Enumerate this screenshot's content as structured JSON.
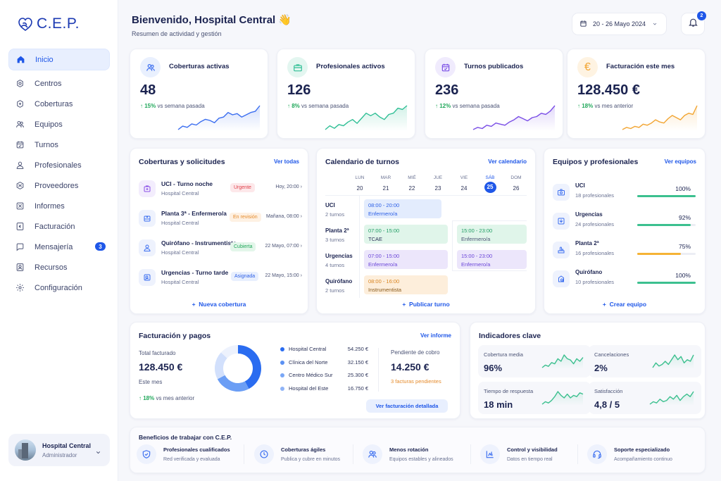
{
  "brand": {
    "name": "C.E.P."
  },
  "sidebar": {
    "items": [
      {
        "label": "Inicio",
        "icon": "home-icon",
        "active": true
      },
      {
        "label": "Centros",
        "icon": "building-icon"
      },
      {
        "label": "Coberturas",
        "icon": "coverage-icon"
      },
      {
        "label": "Equipos",
        "icon": "team-icon"
      },
      {
        "label": "Turnos",
        "icon": "calendar-icon"
      },
      {
        "label": "Profesionales",
        "icon": "user-icon"
      },
      {
        "label": "Proveedores",
        "icon": "box-icon"
      },
      {
        "label": "Informes",
        "icon": "report-icon"
      },
      {
        "label": "Facturación",
        "icon": "euro-icon"
      },
      {
        "label": "Mensajería",
        "icon": "chat-icon",
        "badge": "3"
      },
      {
        "label": "Recursos",
        "icon": "resource-icon"
      },
      {
        "label": "Configuración",
        "icon": "gear-icon"
      }
    ],
    "user": {
      "name": "Hospital Central",
      "role": "Administrador"
    }
  },
  "header": {
    "title": "Bienvenido, Hospital Central",
    "emoji": "👋",
    "subtitle": "Resumen de actividad y gestión",
    "date_range": "20 - 26 Mayo 2024",
    "notifications": "2"
  },
  "kpis": [
    {
      "label": "Coberturas activas",
      "value": "48",
      "delta": "15%",
      "delta_text": "vs semana pasada",
      "color": "#3b6ef0",
      "bg": "#e9f0fe",
      "spark": [
        2,
        5,
        4,
        7,
        6,
        9,
        11,
        10,
        8,
        12,
        13,
        17,
        15,
        16,
        13,
        15,
        17,
        18,
        23
      ]
    },
    {
      "label": "Profesionales activos",
      "value": "126",
      "delta": "8%",
      "delta_text": "vs semana pasada",
      "color": "#2fbf95",
      "bg": "#e3f6f0",
      "spark": [
        2,
        5,
        3,
        6,
        5,
        8,
        10,
        7,
        11,
        15,
        13,
        15,
        12,
        10,
        14,
        15,
        19,
        18,
        21
      ]
    },
    {
      "label": "Turnos publicados",
      "value": "236",
      "delta": "12%",
      "delta_text": "vs semana pasada",
      "color": "#7a4ee6",
      "bg": "#f0ebfd",
      "spark": [
        1,
        3,
        2,
        5,
        4,
        7,
        6,
        5,
        8,
        10,
        13,
        11,
        9,
        12,
        13,
        16,
        15,
        18,
        23
      ]
    },
    {
      "label": "Facturación este mes",
      "value": "128.450 €",
      "delta": "18%",
      "delta_text": "vs mes anterior",
      "color": "#f2a532",
      "bg": "#fef3e2",
      "spark": [
        1,
        3,
        2,
        4,
        3,
        6,
        5,
        7,
        10,
        8,
        7,
        11,
        14,
        12,
        10,
        14,
        16,
        15,
        23
      ]
    }
  ],
  "coberturas": {
    "title": "Coberturas y solicitudes",
    "link": "Ver todas",
    "action": "Nueva cobertura",
    "items": [
      {
        "title": "UCI - Turno noche",
        "center": "Hospital Central",
        "status": "Urgente",
        "status_color": "#e0424b",
        "status_bg": "#fde8ea",
        "time": "Hoy, 20:00",
        "icon": "medical-bag-icon",
        "icon_color": "#8a4fe6",
        "icon_bg": "#f3edfd"
      },
      {
        "title": "Planta 3ª - Enfermero/a",
        "center": "Hospital Central",
        "status": "En revisión",
        "status_color": "#e58a2a",
        "status_bg": "#fef1e3",
        "time": "Mañana, 08:00",
        "icon": "bed-icon",
        "icon_color": "#3b6ef0",
        "icon_bg": "#eef2fd"
      },
      {
        "title": "Quirófano - Instrumentista",
        "center": "Hospital Central",
        "status": "Cubierta",
        "status_color": "#21a85b",
        "status_bg": "#e3f6ea",
        "time": "22 Mayo, 07:00",
        "icon": "surgeon-icon",
        "icon_color": "#3b6ef0",
        "icon_bg": "#eef2fd"
      },
      {
        "title": "Urgencias - Turno tarde",
        "center": "Hospital Central",
        "status": "Asignada",
        "status_color": "#2c5fe6",
        "status_bg": "#e8effe",
        "time": "22 Mayo, 15:00",
        "icon": "emergency-icon",
        "icon_color": "#3b6ef0",
        "icon_bg": "#eef2fd"
      }
    ]
  },
  "calendario": {
    "title": "Calendario de turnos",
    "link": "Ver calendario",
    "action": "Publicar turno",
    "days": [
      {
        "name": "LUN",
        "num": "20"
      },
      {
        "name": "MAR",
        "num": "21"
      },
      {
        "name": "MIÉ",
        "num": "22"
      },
      {
        "name": "JUE",
        "num": "23"
      },
      {
        "name": "VIE",
        "num": "24"
      },
      {
        "name": "SÁB",
        "num": "25",
        "today": true
      },
      {
        "name": "DOM",
        "num": "26"
      }
    ],
    "rows": [
      {
        "name": "UCI",
        "count": "2 turnos"
      },
      {
        "name": "Planta 2ª",
        "count": "3 turnos"
      },
      {
        "name": "Urgencias",
        "count": "4 turnos"
      },
      {
        "name": "Quirófano",
        "count": "2 turnos"
      }
    ],
    "shifts": [
      {
        "time": "08:00 - 20:00",
        "role": "Enfermero/a",
        "color": "#2c5fe6",
        "bg": "#e3ecfd"
      },
      {
        "time": "07:00 - 15:00",
        "role": "TCAE",
        "color": "#1f9d63",
        "bg": "#e0f5ea"
      },
      {
        "time": "15:00 - 23:00",
        "role": "Enfermero/a",
        "color": "#1f9d63",
        "bg": "#e0f5ea"
      },
      {
        "time": "07:00 - 15:00",
        "role": "Enfermero/a",
        "color": "#6a45d8",
        "bg": "#ece6fb"
      },
      {
        "time": "15:00 - 23:00",
        "role": "Enfermero/a",
        "color": "#6a45d8",
        "bg": "#ece6fb"
      },
      {
        "time": "08:00 - 16:00",
        "role": "Instrumentista",
        "color": "#d98420",
        "bg": "#fdeedb"
      }
    ]
  },
  "equipos": {
    "title": "Equipos y profesionales",
    "link": "Ver equipos",
    "action": "Crear equipo",
    "items": [
      {
        "name": "UCI",
        "sub": "18 profesionales",
        "pct_label": "100%",
        "pct": 100,
        "color": "#3cc08f",
        "icon": "camera-icon"
      },
      {
        "name": "Urgencias",
        "sub": "24 profesionales",
        "pct_label": "92%",
        "pct": 92,
        "color": "#3cc08f",
        "icon": "inbox-icon"
      },
      {
        "name": "Planta 2ª",
        "sub": "16 profesionales",
        "pct_label": "75%",
        "pct": 75,
        "color": "#f5b335",
        "icon": "hand-icon"
      },
      {
        "name": "Quirófano",
        "sub": "10 profesionales",
        "pct_label": "100%",
        "pct": 100,
        "color": "#3cc08f",
        "icon": "surgery-icon"
      }
    ]
  },
  "facturacion": {
    "title": "Facturación y pagos",
    "link": "Ver informe",
    "total_label": "Total facturado",
    "total_value": "128.450 €",
    "period": "Este mes",
    "delta": "18%",
    "delta_text": "vs mes anterior",
    "pending_label": "Pendiente de cobro",
    "pending_value": "14.250 €",
    "pending_note": "3 facturas pendientes",
    "button": "Ver facturación detallada",
    "legend": [
      {
        "name": "Hospital Central",
        "value": "54.250 €",
        "amount": 54250,
        "color": "#2a6cf0"
      },
      {
        "name": "Clínica del Norte",
        "value": "32.150 €",
        "amount": 32150,
        "color": "#6b9ef5"
      },
      {
        "name": "Centro Médico Sur",
        "value": "25.300 €",
        "amount": 25300,
        "color": "#d2e0fc"
      },
      {
        "name": "Hospital del Este",
        "value": "16.750 €",
        "amount": 16750,
        "color": "#edf2fd"
      }
    ],
    "legend_dot_colors": [
      "#2a6cf0",
      "#5b91f3",
      "#7aa7f6",
      "#8fb4f7"
    ]
  },
  "indicadores": {
    "title": "Indicadores clave",
    "items": [
      {
        "label": "Cobertura media",
        "value": "96%",
        "spark": [
          2,
          4,
          3,
          6,
          5,
          9,
          7,
          12,
          9,
          8,
          5,
          9,
          7,
          10
        ]
      },
      {
        "label": "Cancelaciones",
        "value": "2%",
        "spark": [
          3,
          6,
          4,
          5,
          7,
          5,
          8,
          11,
          8,
          10,
          6,
          8,
          7,
          11
        ]
      },
      {
        "label": "Tiempo de respuesta",
        "value": "18 min",
        "spark": [
          2,
          4,
          3,
          5,
          8,
          12,
          9,
          7,
          10,
          7,
          9,
          8,
          11,
          10
        ]
      },
      {
        "label": "Satisfacción",
        "value": "4,8 / 5",
        "spark": [
          2,
          4,
          3,
          6,
          4,
          5,
          8,
          6,
          9,
          5,
          8,
          10,
          8,
          12
        ]
      }
    ]
  },
  "beneficios": {
    "title": "Beneficios de trabajar con C.E.P.",
    "items": [
      {
        "title": "Profesionales cualificados",
        "sub": "Red verificada y evaluada",
        "icon": "shield-check-icon"
      },
      {
        "title": "Coberturas ágiles",
        "sub": "Publica y cubre en minutos",
        "icon": "clock-icon"
      },
      {
        "title": "Menos rotación",
        "sub": "Equipos estables y alineados",
        "icon": "users-icon"
      },
      {
        "title": "Control y visibilidad",
        "sub": "Datos en tiempo real",
        "icon": "chart-icon"
      },
      {
        "title": "Soporte especializado",
        "sub": "Acompañamiento continuo",
        "icon": "headset-icon"
      }
    ]
  }
}
